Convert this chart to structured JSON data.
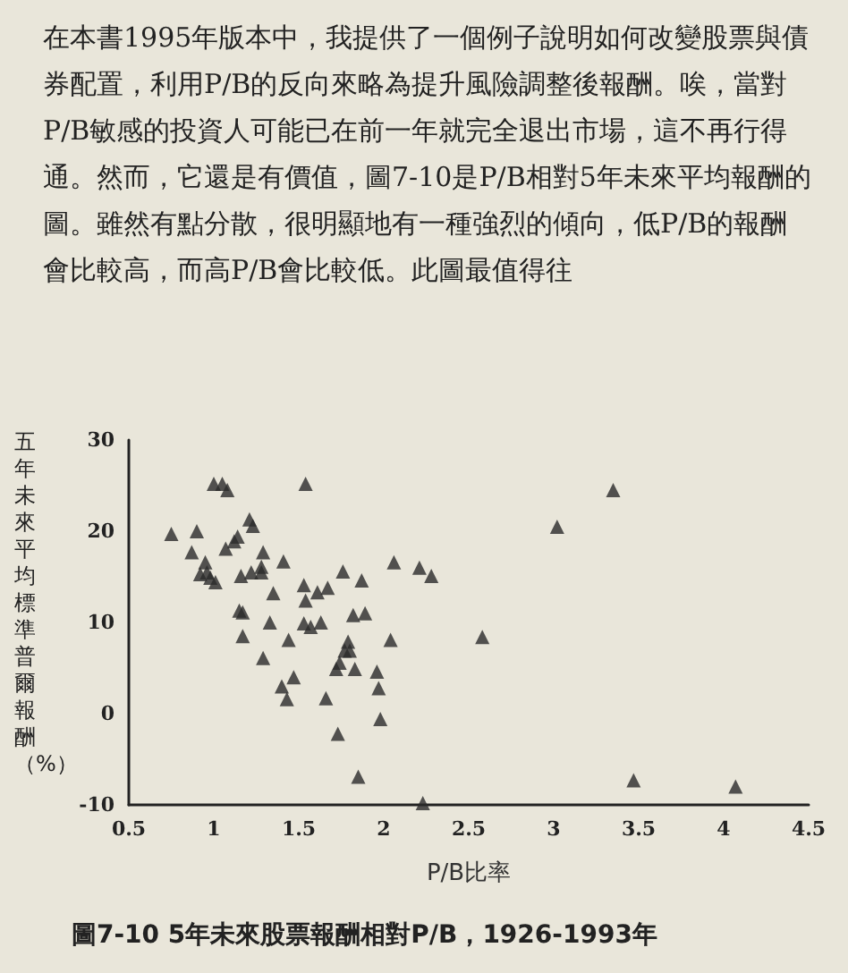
{
  "chart_data": {
    "type": "scatter",
    "title": "圖7-10 5年未來股票報酬相對P/B，1926-1993年",
    "xlabel": "P/B比率",
    "ylabel": "五年未來平均標準普爾報酬（%）",
    "annotations": [
      "在本書1995年版本中，我提供了一個例子說明如何改變股票與債券配置，利用P/B的反向來略為提升風險調整後報酬。唉，當對P/B敏感的投資人可能已在前一年就完全退出市場，這不再行得通。然而，它還是有價值，圖7-10是P/B相對5年未來平均報酬的圖。雖然有點分散，很明顯地有一種強烈的傾向，低P/B的報酬會比較高，而高P/B會比較低。此圖最值得往"
    ],
    "x": [
      1.0,
      1.05,
      1.08,
      1.54,
      1.21,
      1.23,
      0.75,
      0.9,
      1.14,
      1.12,
      1.07,
      0.87,
      1.29,
      1.41,
      0.95,
      1.28,
      1.28,
      1.22,
      1.16,
      0.92,
      0.96,
      0.98,
      1.01,
      1.76,
      1.87,
      1.53,
      1.67,
      1.61,
      1.35,
      1.54,
      1.15,
      1.17,
      1.82,
      1.89,
      1.33,
      1.53,
      1.57,
      1.63,
      1.17,
      1.44,
      2.04,
      1.79,
      1.77,
      1.8,
      1.29,
      1.74,
      1.72,
      1.83,
      1.96,
      1.47,
      1.4,
      1.43,
      1.66,
      1.97,
      1.98,
      1.73,
      1.85,
      2.23,
      2.06,
      2.21,
      2.28,
      3.35,
      3.02,
      2.58,
      3.47,
      4.07
    ],
    "values": [
      25.2,
      25.2,
      24.5,
      25.2,
      21.3,
      20.6,
      19.7,
      20,
      19.4,
      18.9,
      18.1,
      17.7,
      17.7,
      16.7,
      16.6,
      16.1,
      15.5,
      15.5,
      15.1,
      15.3,
      15.5,
      14.9,
      14.4,
      15.6,
      14.6,
      14.1,
      13.8,
      13.3,
      13.2,
      12.4,
      11.3,
      11.1,
      10.8,
      11,
      10,
      9.9,
      9.5,
      10,
      8.5,
      8.1,
      8.1,
      7.9,
      6.9,
      6.9,
      6.1,
      5.6,
      4.9,
      4.9,
      4.6,
      4,
      3,
      1.6,
      1.7,
      2.8,
      -0.6,
      -2.2,
      -6.9,
      -9.8,
      16.6,
      16,
      15.1,
      24.5,
      20.5,
      8.4,
      -7.3,
      -8
    ],
    "color": "#2a2a2a",
    "marker": "triangle",
    "xlim": [
      0.5,
      4.5
    ],
    "xticks": [
      0.5,
      1,
      1.5,
      2,
      2.5,
      3,
      3.5,
      4,
      4.5
    ],
    "ylim": [
      -10,
      30
    ],
    "yticks": [
      -10,
      0,
      10,
      20,
      30
    ],
    "grid": false
  }
}
